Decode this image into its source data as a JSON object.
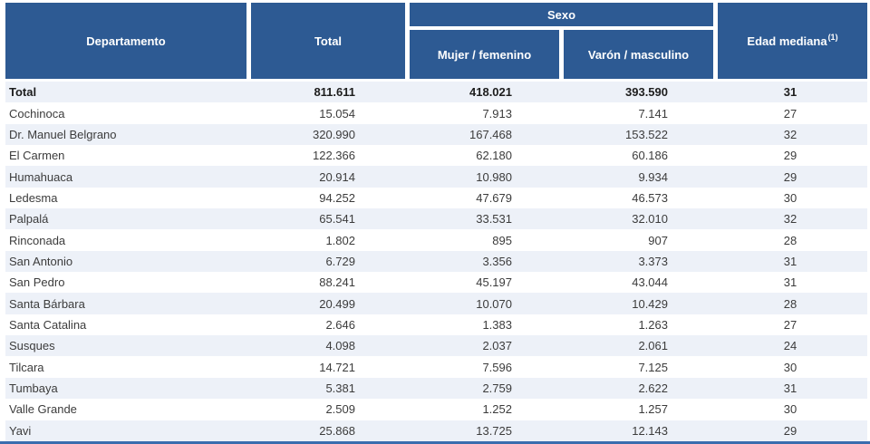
{
  "table": {
    "headers": {
      "departamento": "Departamento",
      "total": "Total",
      "sexo": "Sexo",
      "mujer": "Mujer / femenino",
      "varon": "Varón / masculino",
      "edad_mediana": "Edad mediana",
      "edad_mediana_note_ref": "(1)"
    },
    "rows": [
      {
        "departamento": "Total",
        "total": "811.611",
        "mujer": "418.021",
        "varon": "393.590",
        "edad_mediana": "31"
      },
      {
        "departamento": "Cochinoca",
        "total": "15.054",
        "mujer": "7.913",
        "varon": "7.141",
        "edad_mediana": "27"
      },
      {
        "departamento": "Dr. Manuel Belgrano",
        "total": "320.990",
        "mujer": "167.468",
        "varon": "153.522",
        "edad_mediana": "32"
      },
      {
        "departamento": "El Carmen",
        "total": "122.366",
        "mujer": "62.180",
        "varon": "60.186",
        "edad_mediana": "29"
      },
      {
        "departamento": "Humahuaca",
        "total": "20.914",
        "mujer": "10.980",
        "varon": "9.934",
        "edad_mediana": "29"
      },
      {
        "departamento": "Ledesma",
        "total": "94.252",
        "mujer": "47.679",
        "varon": "46.573",
        "edad_mediana": "30"
      },
      {
        "departamento": "Palpalá",
        "total": "65.541",
        "mujer": "33.531",
        "varon": "32.010",
        "edad_mediana": "32"
      },
      {
        "departamento": "Rinconada",
        "total": "1.802",
        "mujer": "895",
        "varon": "907",
        "edad_mediana": "28"
      },
      {
        "departamento": "San Antonio",
        "total": "6.729",
        "mujer": "3.356",
        "varon": "3.373",
        "edad_mediana": "31"
      },
      {
        "departamento": "San Pedro",
        "total": "88.241",
        "mujer": "45.197",
        "varon": "43.044",
        "edad_mediana": "31"
      },
      {
        "departamento": "Santa Bárbara",
        "total": "20.499",
        "mujer": "10.070",
        "varon": "10.429",
        "edad_mediana": "28"
      },
      {
        "departamento": "Santa Catalina",
        "total": "2.646",
        "mujer": "1.383",
        "varon": "1.263",
        "edad_mediana": "27"
      },
      {
        "departamento": "Susques",
        "total": "4.098",
        "mujer": "2.037",
        "varon": "2.061",
        "edad_mediana": "24"
      },
      {
        "departamento": "Tilcara",
        "total": "14.721",
        "mujer": "7.596",
        "varon": "7.125",
        "edad_mediana": "30"
      },
      {
        "departamento": "Tumbaya",
        "total": "5.381",
        "mujer": "2.759",
        "varon": "2.622",
        "edad_mediana": "31"
      },
      {
        "departamento": "Valle Grande",
        "total": "2.509",
        "mujer": "1.252",
        "varon": "1.257",
        "edad_mediana": "30"
      },
      {
        "departamento": "Yavi",
        "total": "25.868",
        "mujer": "13.725",
        "varon": "12.143",
        "edad_mediana": "29"
      }
    ],
    "colors": {
      "header_bg": "#2d5a93",
      "row_alt_bg": "#edf1f8",
      "bottom_rule": "#3a6cae"
    }
  }
}
